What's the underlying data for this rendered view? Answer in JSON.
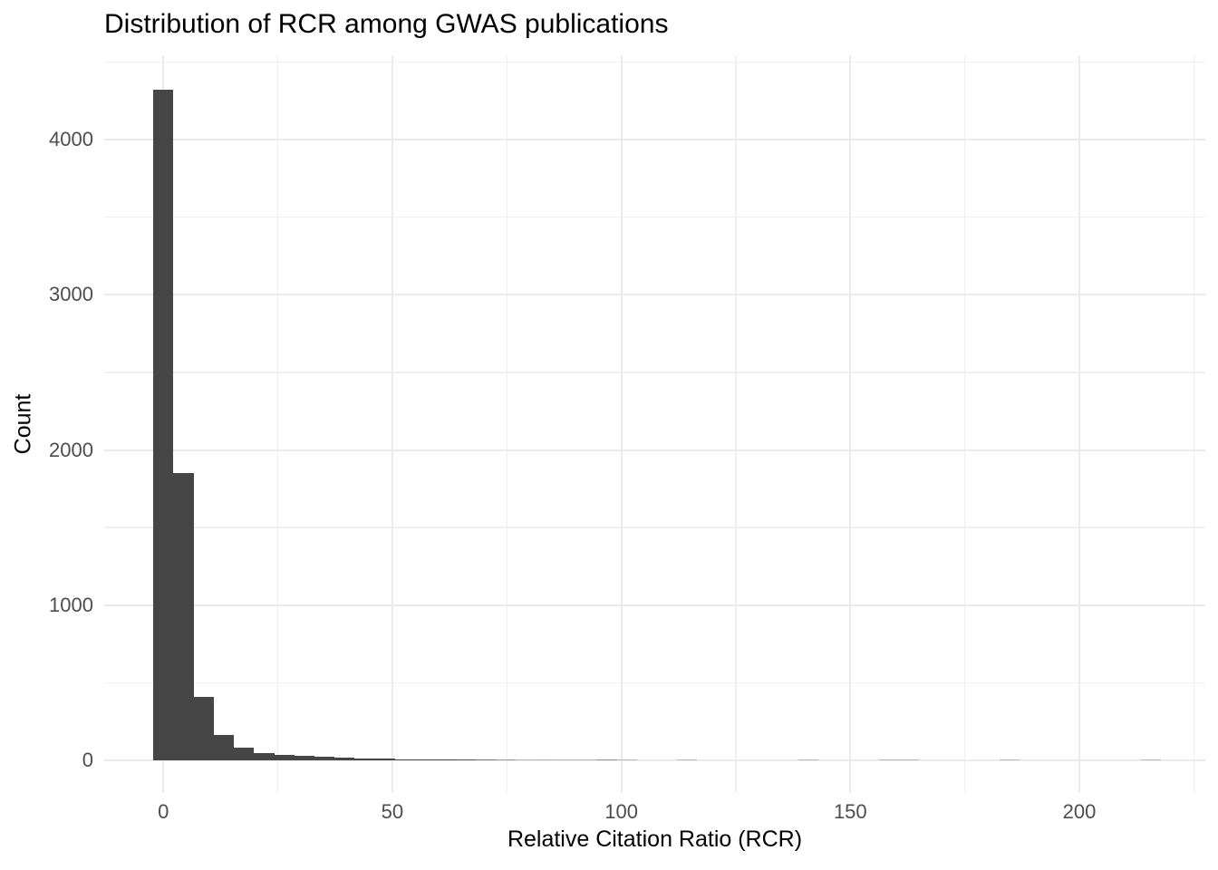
{
  "chart_data": {
    "type": "bar",
    "subtype": "histogram",
    "title": "Distribution of RCR among GWAS publications",
    "xlabel": "Relative Citation Ratio (RCR)",
    "ylabel": "Count",
    "x_tick_labels": [
      "0",
      "50",
      "100",
      "150",
      "200"
    ],
    "x_major_ticks": [
      0,
      50,
      100,
      150,
      200
    ],
    "x_minor_ticks": [
      25,
      75,
      125,
      175,
      225
    ],
    "y_tick_labels": [
      "0",
      "1000",
      "2000",
      "3000",
      "4000"
    ],
    "y_major_ticks": [
      0,
      1000,
      2000,
      3000,
      4000
    ],
    "y_minor_ticks": [
      500,
      1500,
      2500,
      3500,
      4500
    ],
    "xlim": [
      -12.9,
      227.5
    ],
    "ylim": [
      -210,
      4543
    ],
    "grid": "on",
    "legend": "none",
    "binwidth": 4.4,
    "bin_centers": [
      0,
      4.4,
      8.8,
      13.2,
      17.6,
      22,
      26.4,
      30.8,
      35.2,
      39.6,
      44,
      48.4,
      52.8,
      57.2,
      61.6,
      66,
      70.4,
      74.8,
      79.2,
      83.6,
      88,
      92.4,
      96.8,
      101.2,
      114.4,
      140.8,
      158.4,
      162.8,
      184.8,
      215.6
    ],
    "counts": [
      4324,
      1851,
      410,
      165,
      82,
      48,
      37,
      27,
      22,
      17,
      13,
      10,
      8,
      7,
      6,
      5,
      4,
      3,
      1,
      2,
      1,
      1,
      3,
      1,
      1,
      1,
      1,
      1,
      1,
      1
    ],
    "colors": {
      "bar_fill": "#464646",
      "grid_major": "#EBEBEB",
      "grid_minor": "#F0F0F0",
      "axis_text": "#4D4D4D",
      "title_text": "#000000",
      "background": "#FFFFFF"
    }
  }
}
